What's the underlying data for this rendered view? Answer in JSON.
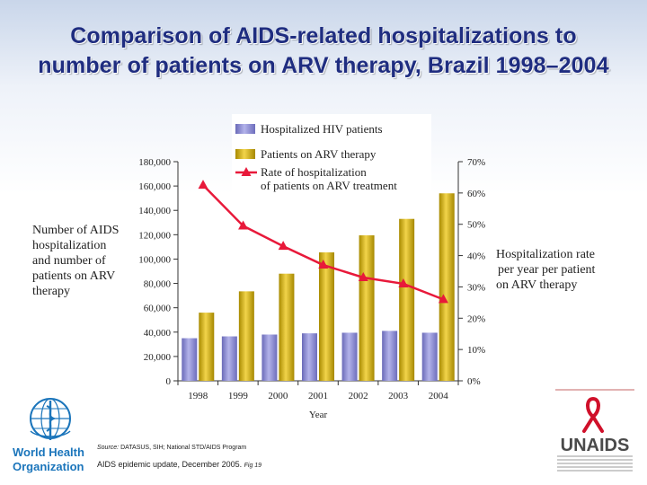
{
  "title_lines": [
    "Comparison of AIDS-related hospitalizations to",
    "number of patients on ARV therapy, Brazil 1998–2004"
  ],
  "left_axis_label": [
    "Number of AIDS",
    "hospitalization",
    "and number of",
    "patients on ARV",
    "therapy"
  ],
  "right_axis_label": [
    "Hospitalization rate",
    "per year per patient",
    "on ARV therapy"
  ],
  "source_label": "Source:",
  "source_text": "DATASUS, SIH; National STD/AIDS Program",
  "epi_text": "AIDS epidemic update, December 2005.",
  "fig_text": "Fig 19",
  "logos": {
    "who": [
      "World Health",
      "Organization"
    ],
    "unaids": "UNAIDS"
  },
  "colors": {
    "hosp_bar": "#8f8fd2",
    "arv_bar": "#d9b800",
    "rate_line": "#e8193a",
    "title": "#1f2d80"
  },
  "chart_data": {
    "type": "bar+line",
    "categories": [
      "1998",
      "1999",
      "2000",
      "2001",
      "2002",
      "2003",
      "2004"
    ],
    "xlabel": "Year",
    "left_axis": {
      "min": 0,
      "max": 180000,
      "ticks": [
        0,
        20000,
        40000,
        60000,
        80000,
        100000,
        120000,
        140000,
        160000,
        180000
      ],
      "tick_labels": [
        "0",
        "20,000",
        "40,000",
        "60,000",
        "80,000",
        "100,000",
        "120,000",
        "140,000",
        "160,000",
        "180,000"
      ]
    },
    "right_axis": {
      "min": 0,
      "max": 70,
      "ticks": [
        0,
        10,
        20,
        30,
        40,
        50,
        60,
        70
      ],
      "tick_labels": [
        "0%",
        "10%",
        "20%",
        "30%",
        "40%",
        "50%",
        "60%",
        "70%"
      ]
    },
    "series": [
      {
        "name": "Hospitalized HIV patients",
        "type": "bar",
        "axis": "left",
        "values": [
          35000,
          36500,
          38000,
          39000,
          39500,
          41000,
          39500
        ]
      },
      {
        "name": "Patients on ARV therapy",
        "type": "bar",
        "axis": "left",
        "values": [
          56000,
          73500,
          88000,
          105500,
          119500,
          133000,
          154000
        ]
      },
      {
        "name": "Rate of hospitalization of patients on ARV treatment",
        "legend_lines": [
          "Rate of hospitalization",
          "of patients on ARV treatment"
        ],
        "type": "line",
        "axis": "right",
        "values": [
          62.5,
          49.5,
          43,
          37,
          33,
          31,
          26
        ]
      }
    ]
  }
}
